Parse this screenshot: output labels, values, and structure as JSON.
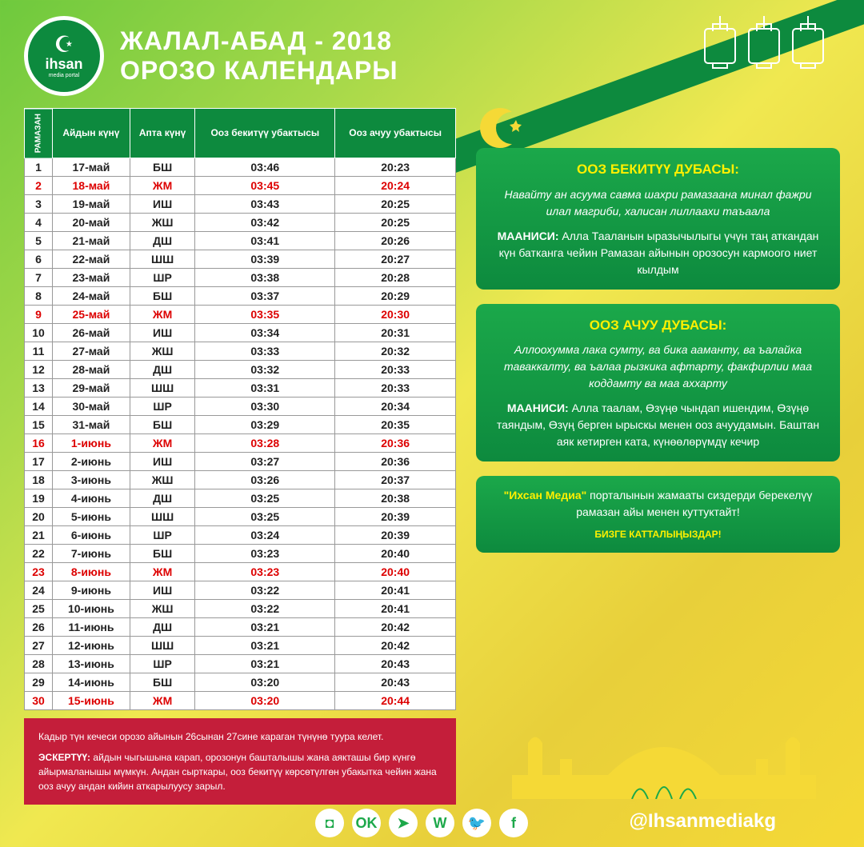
{
  "header": {
    "logo_text": "ihsan",
    "logo_sub": "media portal",
    "title_main": "ЖАЛАЛ-АБАД - 2018",
    "title_sub": "ОРОЗО КАЛЕНДАРЫ"
  },
  "table": {
    "columns": [
      "РАМАЗАН",
      "Айдын күнү",
      "Апта күнү",
      "Ооз бекитүү убактысы",
      "Ооз ачуу убактысы"
    ],
    "rows": [
      {
        "n": "1",
        "date": "17-май",
        "wd": "БШ",
        "s": "03:46",
        "i": "20:23",
        "hl": false
      },
      {
        "n": "2",
        "date": "18-май",
        "wd": "ЖМ",
        "s": "03:45",
        "i": "20:24",
        "hl": true
      },
      {
        "n": "3",
        "date": "19-май",
        "wd": "ИШ",
        "s": "03:43",
        "i": "20:25",
        "hl": false
      },
      {
        "n": "4",
        "date": "20-май",
        "wd": "ЖШ",
        "s": "03:42",
        "i": "20:25",
        "hl": false
      },
      {
        "n": "5",
        "date": "21-май",
        "wd": "ДШ",
        "s": "03:41",
        "i": "20:26",
        "hl": false
      },
      {
        "n": "6",
        "date": "22-май",
        "wd": "ШШ",
        "s": "03:39",
        "i": "20:27",
        "hl": false
      },
      {
        "n": "7",
        "date": "23-май",
        "wd": "ШР",
        "s": "03:38",
        "i": "20:28",
        "hl": false
      },
      {
        "n": "8",
        "date": "24-май",
        "wd": "БШ",
        "s": "03:37",
        "i": "20:29",
        "hl": false
      },
      {
        "n": "9",
        "date": "25-май",
        "wd": "ЖМ",
        "s": "03:35",
        "i": "20:30",
        "hl": true
      },
      {
        "n": "10",
        "date": "26-май",
        "wd": "ИШ",
        "s": "03:34",
        "i": "20:31",
        "hl": false
      },
      {
        "n": "11",
        "date": "27-май",
        "wd": "ЖШ",
        "s": "03:33",
        "i": "20:32",
        "hl": false
      },
      {
        "n": "12",
        "date": "28-май",
        "wd": "ДШ",
        "s": "03:32",
        "i": "20:33",
        "hl": false
      },
      {
        "n": "13",
        "date": "29-май",
        "wd": "ШШ",
        "s": "03:31",
        "i": "20:33",
        "hl": false
      },
      {
        "n": "14",
        "date": "30-май",
        "wd": "ШР",
        "s": "03:30",
        "i": "20:34",
        "hl": false
      },
      {
        "n": "15",
        "date": "31-май",
        "wd": "БШ",
        "s": "03:29",
        "i": "20:35",
        "hl": false
      },
      {
        "n": "16",
        "date": "1-июнь",
        "wd": "ЖМ",
        "s": "03:28",
        "i": "20:36",
        "hl": true
      },
      {
        "n": "17",
        "date": "2-июнь",
        "wd": "ИШ",
        "s": "03:27",
        "i": "20:36",
        "hl": false
      },
      {
        "n": "18",
        "date": "3-июнь",
        "wd": "ЖШ",
        "s": "03:26",
        "i": "20:37",
        "hl": false
      },
      {
        "n": "19",
        "date": "4-июнь",
        "wd": "ДШ",
        "s": "03:25",
        "i": "20:38",
        "hl": false
      },
      {
        "n": "20",
        "date": "5-июнь",
        "wd": "ШШ",
        "s": "03:25",
        "i": "20:39",
        "hl": false
      },
      {
        "n": "21",
        "date": "6-июнь",
        "wd": "ШР",
        "s": "03:24",
        "i": "20:39",
        "hl": false
      },
      {
        "n": "22",
        "date": "7-июнь",
        "wd": "БШ",
        "s": "03:23",
        "i": "20:40",
        "hl": false
      },
      {
        "n": "23",
        "date": "8-июнь",
        "wd": "ЖМ",
        "s": "03:23",
        "i": "20:40",
        "hl": true
      },
      {
        "n": "24",
        "date": "9-июнь",
        "wd": "ИШ",
        "s": "03:22",
        "i": "20:41",
        "hl": false
      },
      {
        "n": "25",
        "date": "10-июнь",
        "wd": "ЖШ",
        "s": "03:22",
        "i": "20:41",
        "hl": false
      },
      {
        "n": "26",
        "date": "11-июнь",
        "wd": "ДШ",
        "s": "03:21",
        "i": "20:42",
        "hl": false
      },
      {
        "n": "27",
        "date": "12-июнь",
        "wd": "ШШ",
        "s": "03:21",
        "i": "20:42",
        "hl": false
      },
      {
        "n": "28",
        "date": "13-июнь",
        "wd": "ШР",
        "s": "03:21",
        "i": "20:43",
        "hl": false
      },
      {
        "n": "29",
        "date": "14-июнь",
        "wd": "БШ",
        "s": "03:20",
        "i": "20:43",
        "hl": false
      },
      {
        "n": "30",
        "date": "15-июнь",
        "wd": "ЖМ",
        "s": "03:20",
        "i": "20:44",
        "hl": true
      }
    ]
  },
  "dua1": {
    "title": "ООЗ БЕКИТҮҮ ДУБАСЫ:",
    "body": "Навайту ан асуума савма шахри рамазаана минал фажри илал магриби, халисан лиллаахи таъаала",
    "meaning_label": "МААНИСИ:",
    "meaning": "Алла Тааланын ыразычылыгы үчүн таң аткан­дан күн батканга чейин Рамазан айынын орозосун кармоого ниет кылдым"
  },
  "dua2": {
    "title": "ООЗ АЧУУ ДУБАСЫ:",
    "body": "Аллоохумма лака сумту, ва бика ааманту, ва ъалайка таваккалту, ва ъалаа рызкика афтарту, факфирлии маа коддамту ва маа аххарту",
    "meaning_label": "МААНИСИ:",
    "meaning": "Алла таалам, Өзүңө чындап ишендим, Өзүңө таяндым, Өзүң берген ырыскы менен ооз ачуудамын. Баштан аяк кетирген ката, күнөөлөрүмдү кечир"
  },
  "media": {
    "brand": "\"Ихсан Медиа\"",
    "text": "порталынын жамааты сиздерди берекелүү рамазан айы менен куттуктайт!",
    "cta": "БИЗГЕ КАТТАЛЫҢЫЗДАР!"
  },
  "footer": {
    "line1": "Кадыр түн кечеси орозо айынын 26сынан 27сине караган түнүнө туура келет.",
    "label": "ЭСКЕРТҮҮ:",
    "line2": "айдын чыгышына карап, орозонун башталышы жана аякташы бир күнгө айырмаланышы мүмкүн. Андан сырткары, ооз бекитүү көрсөтүлгөн убакытка чейин жана ооз ачуу андан кийин аткарылуусу зарыл."
  },
  "handle": "@Ihsanmediakg",
  "socials": [
    "ig",
    "ok",
    "tg",
    "vk",
    "tw",
    "fb"
  ],
  "colors": {
    "green_dark": "#0d8a3e",
    "green_light": "#1ba84a",
    "yellow": "#fff000",
    "red": "#c41e3a",
    "highlight_text": "#d00"
  }
}
